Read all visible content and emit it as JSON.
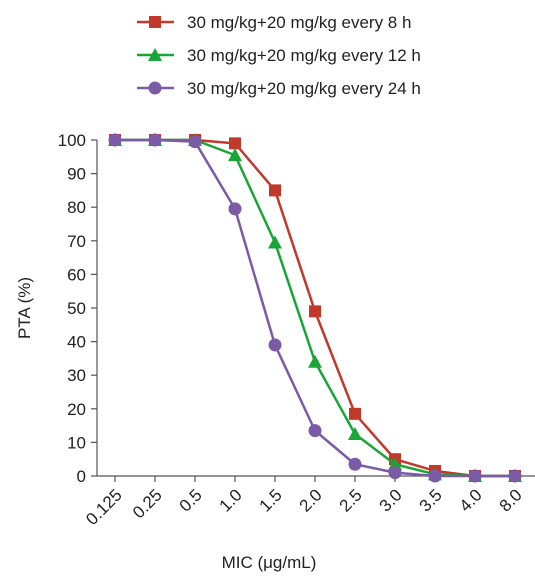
{
  "chart_data": {
    "type": "line",
    "xlabel": "MIC (μg/mL)",
    "ylabel": "PTA (%)",
    "categories": [
      "0.125",
      "0.25",
      "0.5",
      "1.0",
      "1.5",
      "2.0",
      "2.5",
      "3.0",
      "3.5",
      "4.0",
      "8.0"
    ],
    "ylim": [
      0,
      100
    ],
    "yticks": [
      0,
      10,
      20,
      30,
      40,
      50,
      60,
      70,
      80,
      90,
      100
    ],
    "grid": false,
    "legend": "top",
    "series": [
      {
        "name": "30 mg/kg+20 mg/kg every 8 h",
        "marker": "square",
        "color": "#c0392b",
        "values": [
          100,
          100,
          100,
          99,
          85,
          49,
          18.5,
          5,
          1.5,
          0,
          0
        ]
      },
      {
        "name": "30 mg/kg+20 mg/kg every 12 h",
        "marker": "triangle",
        "color": "#1aa637",
        "values": [
          100,
          100,
          100,
          95.5,
          69.5,
          34,
          12.5,
          3.5,
          0.5,
          0,
          0
        ]
      },
      {
        "name": "30 mg/kg+20 mg/kg every 24 h",
        "marker": "circle",
        "color": "#7b5aa6",
        "values": [
          100,
          100,
          99.5,
          79.5,
          39,
          13.5,
          3.5,
          1,
          0,
          0,
          0
        ]
      }
    ]
  }
}
